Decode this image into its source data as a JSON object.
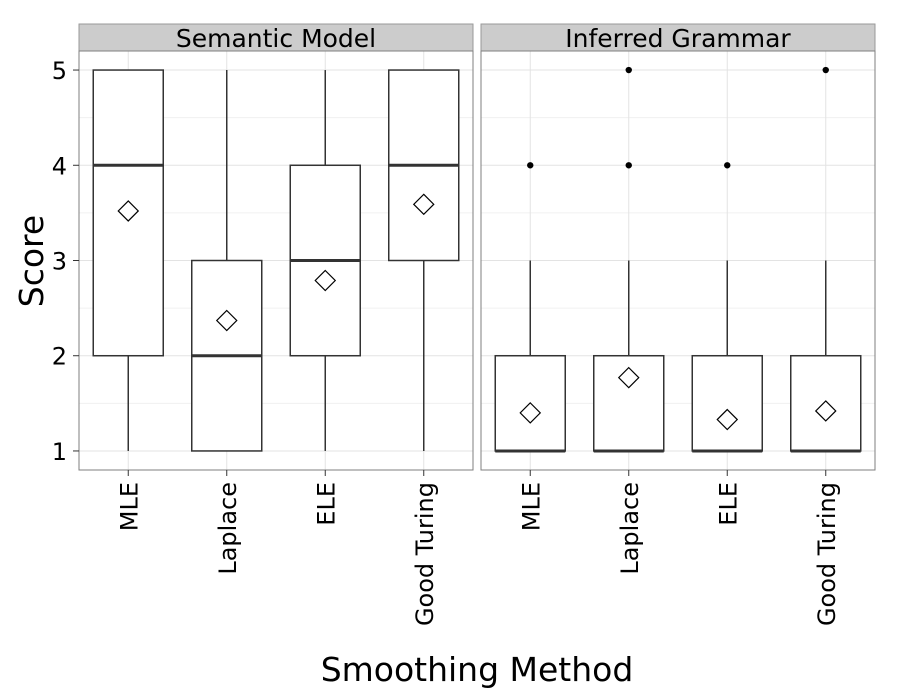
{
  "chart_data": {
    "type": "boxplot",
    "xlabel": "Smoothing Method",
    "ylabel": "Score",
    "ylim": [
      0.8,
      5.2
    ],
    "yticks": [
      1,
      2,
      3,
      4,
      5
    ],
    "categories": [
      "MLE",
      "Laplace",
      "ELE",
      "Good Turing"
    ],
    "grid": "on",
    "panels": [
      {
        "name": "Semantic Model",
        "boxes": [
          {
            "category": "MLE",
            "whisker_low": 1,
            "q1": 2,
            "median": 4,
            "q3": 5,
            "whisker_high": 5,
            "mean": 3.52,
            "outliers": []
          },
          {
            "category": "Laplace",
            "whisker_low": 1,
            "q1": 1,
            "median": 2,
            "q3": 3,
            "whisker_high": 5,
            "mean": 2.37,
            "outliers": []
          },
          {
            "category": "ELE",
            "whisker_low": 1,
            "q1": 2,
            "median": 3,
            "q3": 4,
            "whisker_high": 5,
            "mean": 2.79,
            "outliers": []
          },
          {
            "category": "Good Turing",
            "whisker_low": 1,
            "q1": 3,
            "median": 4,
            "q3": 5,
            "whisker_high": 5,
            "mean": 3.59,
            "outliers": []
          }
        ]
      },
      {
        "name": "Inferred Grammar",
        "boxes": [
          {
            "category": "MLE",
            "whisker_low": 1,
            "q1": 1,
            "median": 1,
            "q3": 2,
            "whisker_high": 3,
            "mean": 1.4,
            "outliers": [
              4
            ]
          },
          {
            "category": "Laplace",
            "whisker_low": 1,
            "q1": 1,
            "median": 1,
            "q3": 2,
            "whisker_high": 3,
            "mean": 1.77,
            "outliers": [
              4,
              5
            ]
          },
          {
            "category": "ELE",
            "whisker_low": 1,
            "q1": 1,
            "median": 1,
            "q3": 2,
            "whisker_high": 3,
            "mean": 1.33,
            "outliers": [
              4
            ]
          },
          {
            "category": "Good Turing",
            "whisker_low": 1,
            "q1": 1,
            "median": 1,
            "q3": 2,
            "whisker_high": 3,
            "mean": 1.42,
            "outliers": [
              5
            ]
          }
        ]
      }
    ]
  }
}
